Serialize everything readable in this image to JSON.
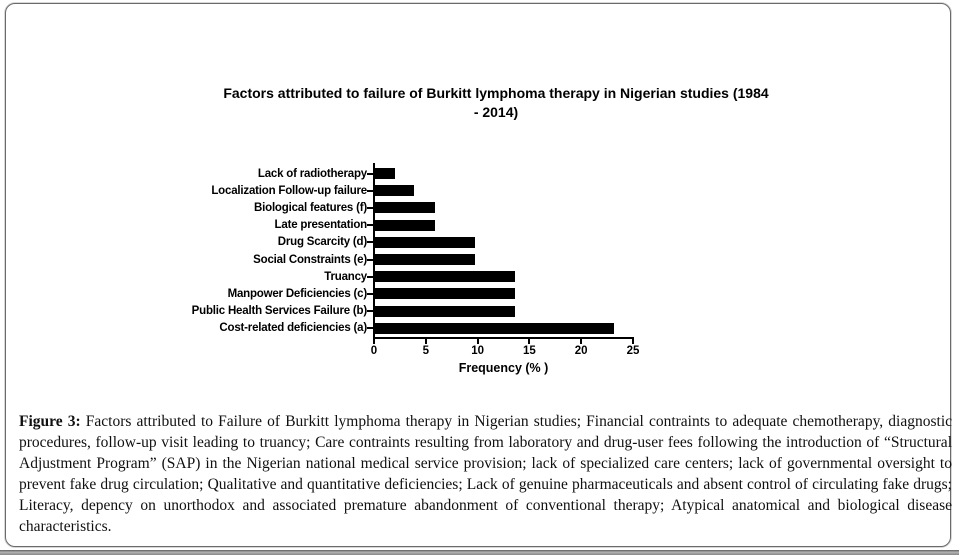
{
  "figure": {
    "caption_label": "Figure 3:",
    "caption_text": " Factors attributed to Failure of Burkitt lymphoma therapy in Nigerian studies; Financial contraints to adequate chemotherapy, diagnostic procedures, follow-up visit leading to truancy; Care contraints resulting from laboratory and drug-user fees following the introduction of “Structural Adjustment Program” (SAP) in the Nigerian national medical service provision; lack of specialized care centers; lack of governmental oversight to prevent fake drug circulation; Qualitative and quantitative deficiencies; Lack of genuine pharmaceuticals and absent control of circulating fake drugs; Literacy, depency on unorthodox and associated premature abandonment of conventional therapy; Atypical anatomical and biological disease characteristics."
  },
  "chart_data": {
    "type": "bar",
    "orientation": "horizontal",
    "title": "Factors attributed to failure of Burkitt lymphoma therapy in Nigerian studies (1984 - 2014)",
    "title_lines": [
      "Factors attributed to failure of Burkitt lymphoma therapy in Nigerian studies (1984",
      "- 2014)"
    ],
    "categories": [
      "Lack of radiotherapy",
      "Localization Follow-up failure",
      "Biological features (f)",
      "Late presentation",
      "Drug Scarcity (d)",
      "Social Constraints (e)",
      "Truancy",
      "Manpower Deficiencies (c)",
      "Public Health Services Failure (b)",
      "Cost-related deficiencies (a)"
    ],
    "values": [
      1.9,
      3.8,
      5.8,
      5.8,
      9.6,
      9.6,
      13.5,
      13.5,
      13.5,
      23.1
    ],
    "xlabel": "Frequency (% )",
    "ylabel": "",
    "xlim": [
      0,
      25
    ],
    "xticks": [
      0,
      5,
      10,
      15,
      20,
      25
    ],
    "bar_color": "#000000",
    "grid": false,
    "legend": "none"
  }
}
